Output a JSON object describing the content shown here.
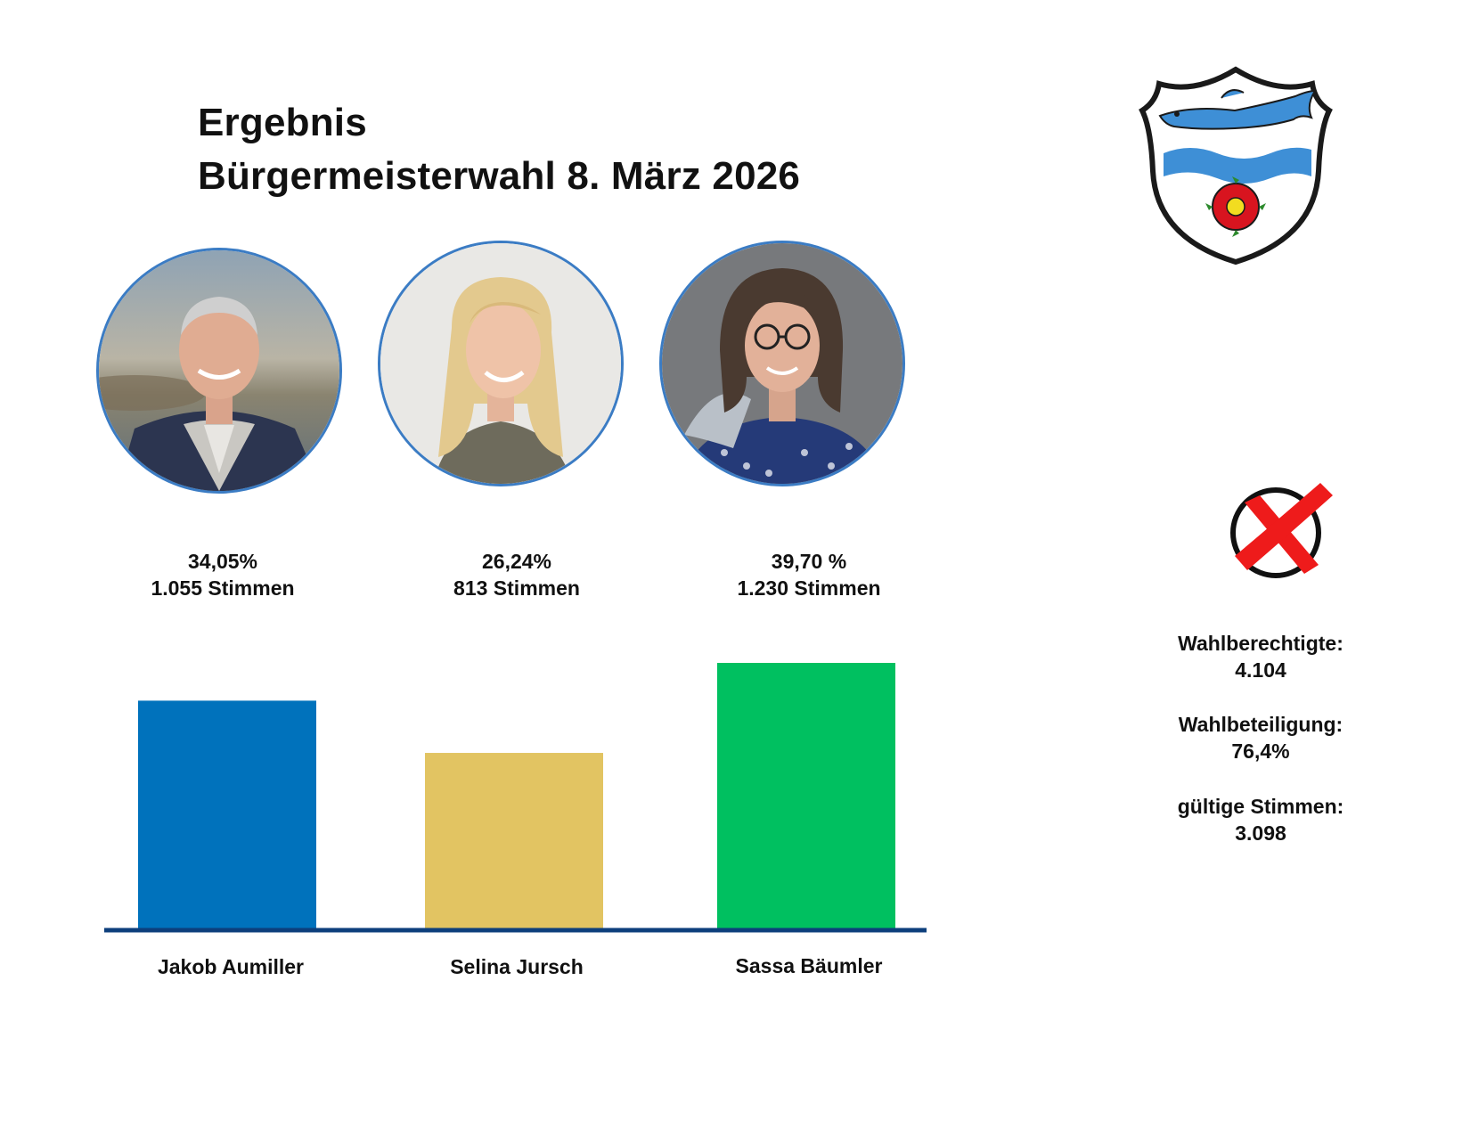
{
  "header": {
    "title_line1": "Ergebnis",
    "title_line2": "Bürgermeisterwahl 8. März 2026"
  },
  "candidates": [
    {
      "percent_text": "34,05%",
      "votes_text": "1.055 Stimmen",
      "name": "Jakob Aumiller",
      "photo_icon": "portrait-man-icon"
    },
    {
      "percent_text": "26,24%",
      "votes_text": "813 Stimmen",
      "name": "Selina Jursch",
      "photo_icon": "portrait-woman-blonde-icon"
    },
    {
      "percent_text": "39,70 %",
      "votes_text": "1.230 Stimmen",
      "name": "Sassa Bäumler",
      "photo_icon": "portrait-woman-glasses-icon"
    }
  ],
  "sidebar": {
    "eligible_label": "Wahlberechtigte:",
    "eligible_value": "4.104",
    "turnout_label": "Wahlbeteiligung:",
    "turnout_value": "76,4%",
    "valid_label": "gültige Stimmen:",
    "valid_value": "3.098",
    "crest_icon": "municipal-coat-of-arms-icon",
    "ballot_icon": "ballot-cross-icon"
  },
  "colors": {
    "axis": "#0d3f7c",
    "portrait_border": "#3b7cc4"
  },
  "chart_data": {
    "type": "bar",
    "categories": [
      "Jakob Aumiller",
      "Selina Jursch",
      "Sassa Bäumler"
    ],
    "values": [
      1055,
      813,
      1230
    ],
    "colors": [
      "#0072bc",
      "#e2c462",
      "#00c060"
    ],
    "xlabel": "",
    "ylabel": "",
    "ylim": [
      0,
      1230
    ],
    "grid": false,
    "legend": "none"
  }
}
